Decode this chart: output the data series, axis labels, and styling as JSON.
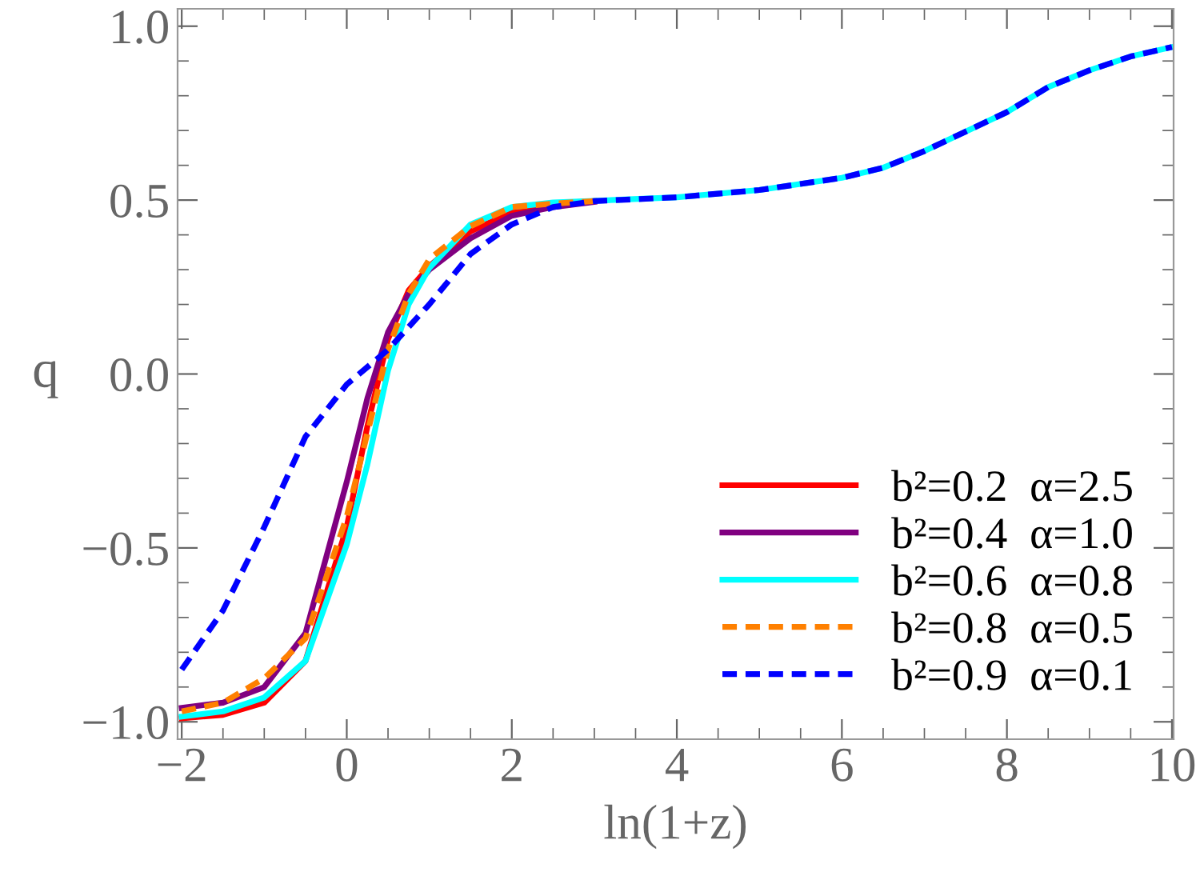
{
  "chart_data": {
    "type": "line",
    "xlabel": "ln(1+z)",
    "ylabel": "q",
    "xlim": [
      -2.05,
      10.02
    ],
    "ylim": [
      -1.05,
      1.05
    ],
    "xticks": [
      {
        "value": -2,
        "label": "−2"
      },
      0,
      2,
      4,
      6,
      8,
      10
    ],
    "yticks": [
      {
        "value": -1.0,
        "label": "−1.0"
      },
      {
        "value": -0.5,
        "label": "−0.5"
      },
      {
        "value": 0.0,
        "label": "0.0"
      },
      {
        "value": 0.5,
        "label": "0.5"
      },
      {
        "value": 1.0,
        "label": "1.0"
      }
    ],
    "grid": false,
    "legend": "bottom right",
    "marker": "none",
    "series": [
      {
        "name": "b²=0.2  α=2.5",
        "color": "#ff0000",
        "line_style": "solid",
        "x": [
          -2,
          -1.5,
          -1,
          -0.5,
          0,
          0.25,
          0.5,
          0.75,
          1,
          1.5,
          2,
          2.5,
          3
        ],
        "values": [
          -0.99,
          -0.98,
          -0.945,
          -0.825,
          -0.44,
          -0.15,
          0.1,
          0.24,
          0.31,
          0.41,
          0.465,
          0.49,
          0.497
        ]
      },
      {
        "name": "b²=0.4  α=1.0",
        "color": "#800080",
        "line_style": "solid",
        "x": [
          -2,
          -1.5,
          -1,
          -0.5,
          0,
          0.25,
          0.5,
          0.75,
          1,
          1.5,
          2,
          2.5,
          3
        ],
        "values": [
          -0.96,
          -0.945,
          -0.9,
          -0.745,
          -0.31,
          -0.07,
          0.12,
          0.23,
          0.3,
          0.39,
          0.455,
          0.48,
          0.495
        ]
      },
      {
        "name": "b²=0.6  α=0.8",
        "color": "#00ffff",
        "line_style": "solid",
        "x": [
          -2,
          -1.5,
          -1,
          -0.5,
          0,
          0.25,
          0.5,
          0.75,
          1,
          1.5,
          2,
          2.5,
          3,
          4,
          5,
          6,
          6.5,
          7,
          7.5,
          8,
          8.5,
          9,
          9.5,
          10
        ],
        "values": [
          -0.985,
          -0.97,
          -0.93,
          -0.825,
          -0.49,
          -0.26,
          0.01,
          0.2,
          0.305,
          0.43,
          0.48,
          0.493,
          0.498,
          0.508,
          0.529,
          0.564,
          0.593,
          0.641,
          0.697,
          0.753,
          0.825,
          0.873,
          0.913,
          0.94
        ]
      },
      {
        "name": "b²=0.8  α=0.5",
        "color": "#ff8000",
        "line_style": "dashed",
        "x": [
          -2,
          -1.5,
          -1,
          -0.5,
          0,
          0.25,
          0.5,
          0.75,
          1,
          1.5,
          2,
          2.5,
          3
        ],
        "values": [
          -0.97,
          -0.945,
          -0.875,
          -0.76,
          -0.41,
          -0.17,
          0.07,
          0.23,
          0.33,
          0.425,
          0.48,
          0.49,
          0.497
        ]
      },
      {
        "name": "b²=0.9  α=0.1",
        "color": "#0000ff",
        "line_style": "dashed",
        "x": [
          -2,
          -1.5,
          -1,
          -0.5,
          0,
          0.5,
          1,
          1.5,
          2,
          2.5,
          3,
          4,
          5,
          6,
          6.5,
          7,
          7.5,
          8,
          8.5,
          9,
          9.5,
          10
        ],
        "values": [
          -0.85,
          -0.68,
          -0.44,
          -0.18,
          -0.03,
          0.07,
          0.2,
          0.345,
          0.43,
          0.48,
          0.497,
          0.508,
          0.529,
          0.564,
          0.593,
          0.641,
          0.697,
          0.753,
          0.825,
          0.873,
          0.913,
          0.94
        ]
      }
    ]
  }
}
